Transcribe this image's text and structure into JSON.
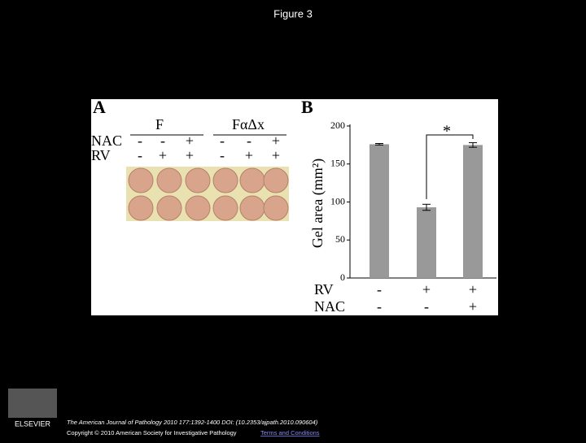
{
  "title": "Figure 3",
  "panel_a": {
    "label": "A",
    "groups": [
      "F",
      "FαΔx"
    ],
    "rows": [
      {
        "name": "NAC",
        "signs": [
          "-",
          "-",
          "+",
          "-",
          "-",
          "+"
        ]
      },
      {
        "name": "RV",
        "signs": [
          "-",
          "+",
          "+",
          "-",
          "+",
          "+"
        ]
      }
    ]
  },
  "chart_data": {
    "type": "bar",
    "panel_label": "B",
    "ylabel": "Gel area (mm²)",
    "categories": [
      null,
      null,
      null
    ],
    "values": [
      176,
      93,
      175
    ],
    "errors": [
      1,
      4,
      3
    ],
    "color": "#999999",
    "ylim": [
      0,
      200
    ],
    "yticks": [
      0,
      50,
      100,
      150,
      200
    ],
    "annotation": "*",
    "conditions": [
      {
        "name": "RV",
        "signs": [
          "-",
          "+",
          "+"
        ]
      },
      {
        "name": "NAC",
        "signs": [
          "-",
          "-",
          "+"
        ]
      }
    ]
  },
  "footer": {
    "citation": "The American Journal of Pathology 2010 177:1392-1400 DOI: (10.2353/ajpath.2010.090604)",
    "copyright": "Copyright © 2010 American Society for Investigative Pathology",
    "link": "Terms and Conditions",
    "publisher": "ELSEVIER"
  }
}
